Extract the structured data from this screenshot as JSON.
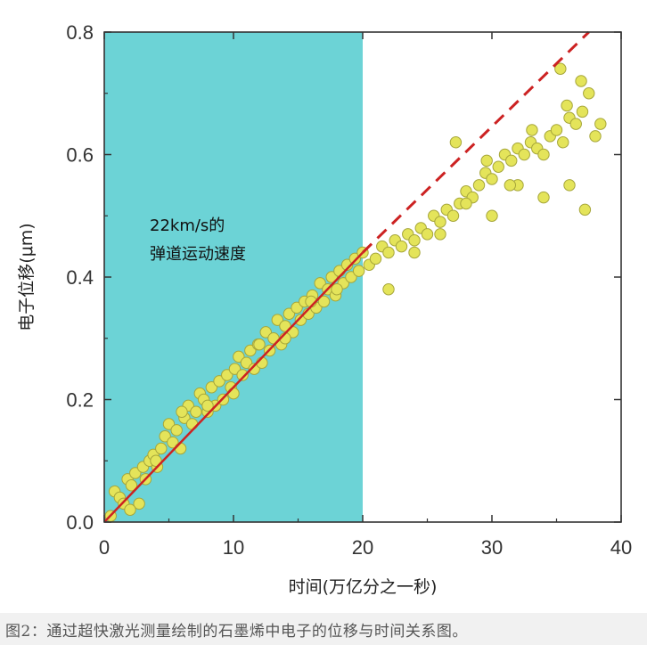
{
  "chart_data": {
    "type": "scatter",
    "title": "",
    "xlabel": "时间(万亿分之一秒)",
    "ylabel": "电子位移(μm)",
    "xlim": [
      0,
      40
    ],
    "ylim": [
      0,
      0.8
    ],
    "x_ticks": [
      "0",
      "10",
      "20",
      "30",
      "40"
    ],
    "y_ticks": [
      "0.0",
      "0.2",
      "0.4",
      "0.6",
      "0.8"
    ],
    "shaded_region": {
      "x_from": 0,
      "x_to": 20,
      "color": "#6cd3d6"
    },
    "annotation": [
      "22km/s的",
      "弹道运动速度"
    ],
    "fit_line": {
      "x": [
        0,
        20
      ],
      "y": [
        0,
        0.44
      ],
      "color": "#cc2222",
      "style": "solid"
    },
    "extrapolation_line": {
      "x": [
        20,
        37.5
      ],
      "y": [
        0.44,
        0.8
      ],
      "color": "#cc2222",
      "style": "dashed"
    },
    "marker_color": "#e4e45a",
    "points": {
      "x": [
        0.5,
        0.8,
        1.2,
        1.5,
        1.8,
        2.1,
        2.4,
        2.7,
        3.0,
        3.2,
        3.5,
        3.8,
        4.1,
        4.4,
        4.7,
        5.0,
        5.3,
        5.6,
        5.9,
        6.2,
        6.5,
        6.8,
        7.1,
        7.4,
        7.7,
        8.0,
        8.3,
        8.6,
        8.9,
        9.2,
        9.5,
        9.8,
        10.1,
        10.4,
        10.7,
        11.0,
        11.3,
        11.6,
        11.9,
        12.2,
        12.5,
        12.8,
        13.1,
        13.4,
        13.7,
        14.0,
        14.3,
        14.6,
        14.9,
        15.2,
        15.5,
        15.8,
        16.1,
        16.4,
        16.7,
        17.0,
        17.3,
        17.6,
        17.9,
        18.2,
        18.5,
        18.8,
        19.1,
        19.4,
        19.7,
        20.0,
        20.5,
        21.0,
        21.5,
        22.0,
        22.5,
        23.0,
        23.5,
        24.0,
        24.5,
        25.0,
        25.5,
        26.0,
        26.5,
        27.0,
        27.5,
        28.0,
        28.5,
        29.0,
        29.5,
        30.0,
        30.5,
        31.0,
        31.5,
        32.0,
        32.5,
        33.0,
        33.5,
        34.0,
        34.5,
        35.0,
        35.5,
        36.0,
        36.5,
        37.0,
        37.5,
        38.0,
        38.4,
        2.0,
        4.0,
        6.0,
        8.0,
        10.0,
        12.0,
        14.0,
        16.0,
        18.0,
        22.0,
        24.0,
        26.0,
        28.0,
        30.0,
        32.0,
        34.0,
        36.0,
        37.2,
        35.3,
        27.2,
        33.1,
        29.6,
        31.4,
        35.8,
        36.9
      ],
      "y": [
        0.01,
        0.05,
        0.04,
        0.03,
        0.07,
        0.06,
        0.08,
        0.03,
        0.09,
        0.07,
        0.1,
        0.11,
        0.09,
        0.12,
        0.14,
        0.16,
        0.13,
        0.15,
        0.12,
        0.17,
        0.19,
        0.16,
        0.18,
        0.21,
        0.2,
        0.18,
        0.22,
        0.19,
        0.23,
        0.2,
        0.24,
        0.22,
        0.25,
        0.27,
        0.24,
        0.26,
        0.28,
        0.25,
        0.29,
        0.26,
        0.31,
        0.28,
        0.3,
        0.33,
        0.29,
        0.32,
        0.34,
        0.31,
        0.35,
        0.33,
        0.36,
        0.34,
        0.37,
        0.35,
        0.39,
        0.36,
        0.38,
        0.4,
        0.37,
        0.41,
        0.39,
        0.42,
        0.4,
        0.43,
        0.41,
        0.44,
        0.42,
        0.43,
        0.45,
        0.44,
        0.46,
        0.45,
        0.47,
        0.46,
        0.48,
        0.47,
        0.5,
        0.49,
        0.51,
        0.5,
        0.52,
        0.54,
        0.53,
        0.55,
        0.57,
        0.56,
        0.58,
        0.6,
        0.59,
        0.61,
        0.6,
        0.62,
        0.61,
        0.6,
        0.63,
        0.64,
        0.62,
        0.66,
        0.65,
        0.67,
        0.7,
        0.63,
        0.65,
        0.02,
        0.1,
        0.18,
        0.19,
        0.21,
        0.29,
        0.3,
        0.36,
        0.38,
        0.38,
        0.44,
        0.47,
        0.52,
        0.5,
        0.55,
        0.53,
        0.55,
        0.51,
        0.74,
        0.62,
        0.64,
        0.59,
        0.55,
        0.68,
        0.72
      ]
    }
  },
  "caption": "图2：通过超快激光测量绘制的石墨烯中电子的位移与时间关系图。"
}
